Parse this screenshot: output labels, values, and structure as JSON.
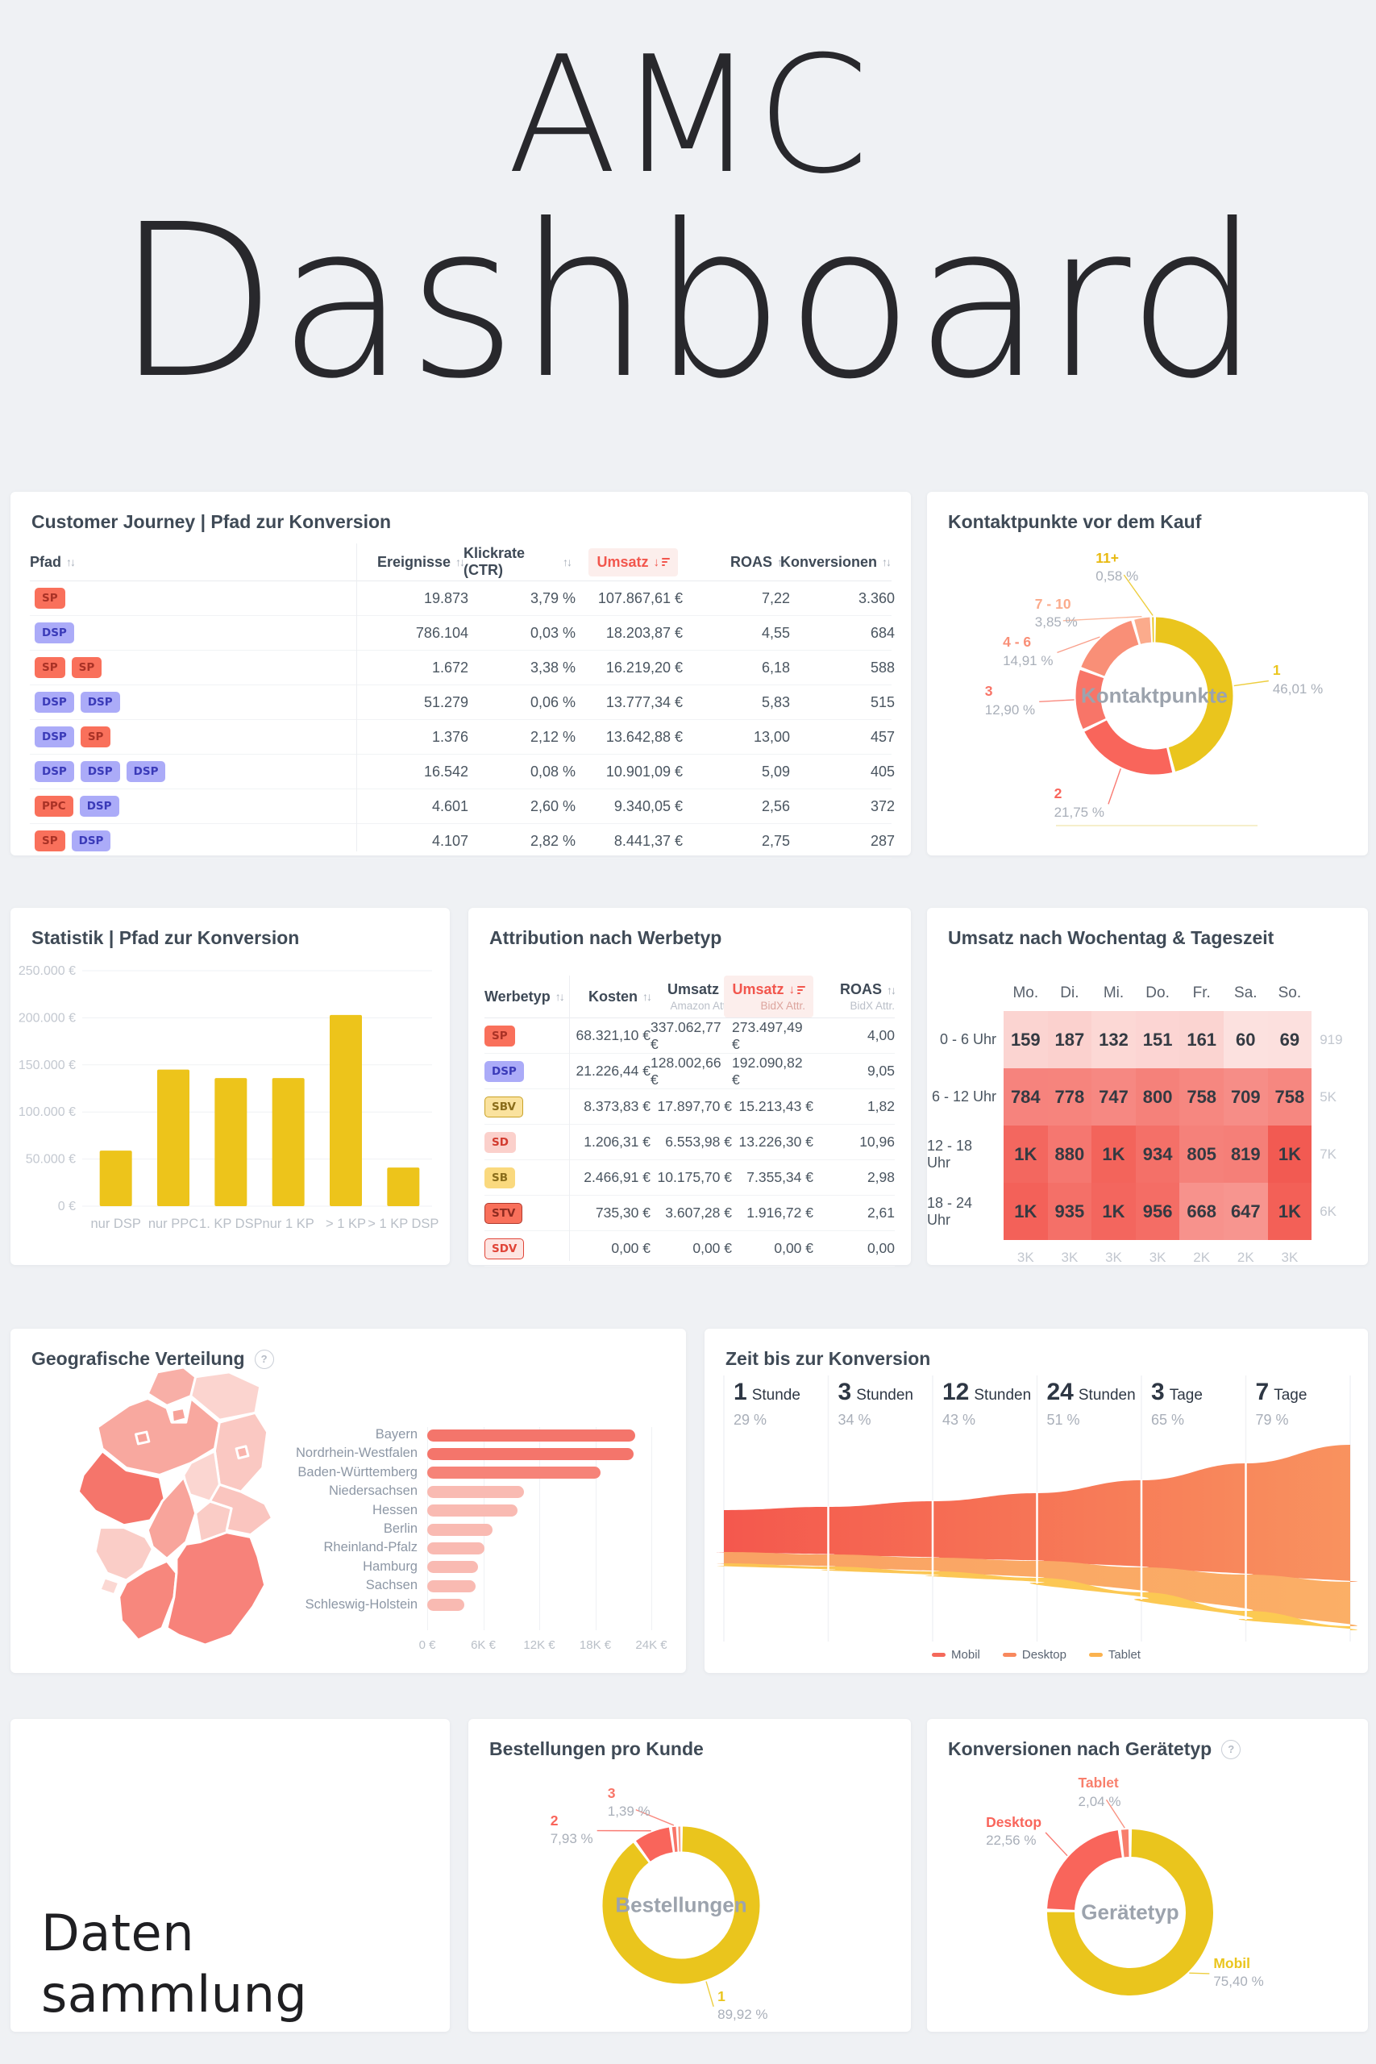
{
  "header": {
    "title_line1": "AMC",
    "title_line2": "Dashboard"
  },
  "icons": {
    "help": "question-mark-circle-icon",
    "sort_inactive": "sort-up-down-arrows-icon",
    "sort_active": "sort-descending-filter-icon"
  },
  "badges": {
    "SP": {
      "bg": "#F9705B",
      "fg": "#A93226"
    },
    "DSP": {
      "bg": "#ABABF8",
      "fg": "#3A3AB8"
    },
    "PPC": {
      "bg": "#F9705B",
      "fg": "#A93226"
    },
    "SBV": {
      "bg": "#FAE29E",
      "fg": "#8A6D1B",
      "border": "#C9A227"
    },
    "SD": {
      "bg": "#FBD0CB",
      "fg": "#D23B2F"
    },
    "SB": {
      "bg": "#FAD97E",
      "fg": "#8A6D1B"
    },
    "STV": {
      "bg": "#F9705B",
      "fg": "#8E2B20",
      "border": "#B03A2E"
    },
    "SDV": {
      "bg": "#FDE5E2",
      "fg": "#E04437",
      "border": "#E04437"
    }
  },
  "cards": {
    "customer_journey": {
      "title": "Customer Journey | Pfad zur Konversion",
      "table": {
        "columns": [
          {
            "label": "Pfad",
            "sortable": true
          },
          {
            "label": "Ereignisse",
            "sortable": true
          },
          {
            "label": "Klickrate (CTR)",
            "sortable": true
          },
          {
            "label": "Umsatz",
            "sortable": true,
            "active": true
          },
          {
            "label": "ROAS",
            "sortable": true
          },
          {
            "label": "Konversionen",
            "sortable": true
          }
        ],
        "rows": [
          {
            "path": [
              "SP"
            ],
            "values": [
              "19.873",
              "3,79 %",
              "107.867,61 €",
              "7,22",
              "3.360"
            ]
          },
          {
            "path": [
              "DSP"
            ],
            "values": [
              "786.104",
              "0,03 %",
              "18.203,87 €",
              "4,55",
              "684"
            ]
          },
          {
            "path": [
              "SP",
              "SP"
            ],
            "values": [
              "1.672",
              "3,38 %",
              "16.219,20 €",
              "6,18",
              "588"
            ]
          },
          {
            "path": [
              "DSP",
              "DSP"
            ],
            "values": [
              "51.279",
              "0,06 %",
              "13.777,34 €",
              "5,83",
              "515"
            ]
          },
          {
            "path": [
              "DSP",
              "SP"
            ],
            "values": [
              "1.376",
              "2,12 %",
              "13.642,88 €",
              "13,00",
              "457"
            ]
          },
          {
            "path": [
              "DSP",
              "DSP",
              "DSP"
            ],
            "values": [
              "16.542",
              "0,08 %",
              "10.901,09 €",
              "5,09",
              "405"
            ]
          },
          {
            "path": [
              "PPC",
              "DSP"
            ],
            "values": [
              "4.601",
              "2,60 %",
              "9.340,05 €",
              "2,56",
              "372"
            ]
          },
          {
            "path": [
              "SP",
              "DSP"
            ],
            "values": [
              "4.107",
              "2,82 %",
              "8.441,37 €",
              "2,75",
              "287"
            ]
          }
        ]
      }
    },
    "kontaktpunkte": {
      "title": "Kontaktpunkte vor dem Kauf"
    },
    "statistik": {
      "title": "Statistik | Pfad zur Konversion"
    },
    "attribution": {
      "title": "Attribution nach Werbetyp",
      "table": {
        "columns": [
          {
            "label": "Werbetyp",
            "sortable": true
          },
          {
            "label": "Kosten",
            "sortable": true
          },
          {
            "label": "Umsatz",
            "sublabel": "Amazon Attr.",
            "sortable": true
          },
          {
            "label": "Umsatz",
            "sublabel": "BidX Attr.",
            "sortable": true,
            "active": true
          },
          {
            "label": "ROAS",
            "sublabel": "BidX Attr.",
            "sortable": true
          }
        ],
        "rows": [
          {
            "badge": "SP",
            "values": [
              "68.321,10 €",
              "337.062,77 €",
              "273.497,49 €",
              "4,00"
            ]
          },
          {
            "badge": "DSP",
            "values": [
              "21.226,44 €",
              "128.002,66 €",
              "192.090,82 €",
              "9,05"
            ]
          },
          {
            "badge": "SBV",
            "values": [
              "8.373,83 €",
              "17.897,70 €",
              "15.213,43 €",
              "1,82"
            ]
          },
          {
            "badge": "SD",
            "values": [
              "1.206,31 €",
              "6.553,98 €",
              "13.226,30 €",
              "10,96"
            ]
          },
          {
            "badge": "SB",
            "values": [
              "2.466,91 €",
              "10.175,70 €",
              "7.355,34 €",
              "2,98"
            ]
          },
          {
            "badge": "STV",
            "values": [
              "735,30 €",
              "3.607,28 €",
              "1.916,72 €",
              "2,61"
            ]
          },
          {
            "badge": "SDV",
            "values": [
              "0,00 €",
              "0,00 €",
              "0,00 €",
              "0,00"
            ]
          }
        ]
      }
    },
    "heatmap": {
      "title": "Umsatz nach Wochentag & Tageszeit"
    },
    "geografie": {
      "title": "Geografische Verteilung",
      "map_regions": [
        {
          "name": "schleswig-holstein",
          "color": "#F8AFA7"
        },
        {
          "name": "mecklenburg-vorpommern",
          "color": "#FBD4CF"
        },
        {
          "name": "hamburg",
          "color": "#F7A299"
        },
        {
          "name": "niedersachsen",
          "color": "#F8A89F"
        },
        {
          "name": "bremen",
          "color": "#F7A299"
        },
        {
          "name": "brandenburg",
          "color": "#FAC8C2"
        },
        {
          "name": "berlin",
          "color": "#F9B3AB"
        },
        {
          "name": "sachsen-anhalt",
          "color": "#FBD6D1"
        },
        {
          "name": "nordrhein-westfalen",
          "color": "#F5756B"
        },
        {
          "name": "hessen",
          "color": "#F8A49B"
        },
        {
          "name": "thueringen",
          "color": "#FACCC6"
        },
        {
          "name": "sachsen",
          "color": "#FAC5BF"
        },
        {
          "name": "rheinland-pfalz",
          "color": "#FACDC7"
        },
        {
          "name": "saarland",
          "color": "#FBD8D3"
        },
        {
          "name": "baden-wuerttemberg",
          "color": "#F7877D"
        },
        {
          "name": "bayern",
          "color": "#F7827A"
        }
      ]
    },
    "zeit": {
      "title": "Zeit bis zur Konversion"
    },
    "daten": {
      "line1": "Daten",
      "line2": "sammlung"
    },
    "bestellungen": {
      "title": "Bestellungen pro Kunde"
    },
    "geraetetyp": {
      "title": "Konversionen nach Gerätetyp"
    }
  },
  "chart_data": [
    {
      "id": "kontaktpunkte_donut",
      "type": "pie",
      "title": "Kontaktpunkte vor dem Kauf",
      "center_label": "Kontaktpunkte",
      "slices": [
        {
          "label": "1",
          "value": 46.01,
          "display": "46,01 %",
          "color": "#EAC51D"
        },
        {
          "label": "2",
          "value": 21.75,
          "display": "21,75 %",
          "color": "#F9655B"
        },
        {
          "label": "3",
          "value": 12.9,
          "display": "12,90 %",
          "color": "#F87568"
        },
        {
          "label": "4 - 6",
          "value": 14.91,
          "display": "14,91 %",
          "color": "#F98F77"
        },
        {
          "label": "7 - 10",
          "value": 3.85,
          "display": "3,85 %",
          "color": "#FBAB8C"
        },
        {
          "label": "11+",
          "value": 0.58,
          "display": "0,58 %",
          "color": "#EAC51D",
          "label_color": "#E8B90F"
        }
      ]
    },
    {
      "id": "statistik_bar",
      "type": "bar",
      "title": "Statistik | Pfad zur Konversion",
      "categories": [
        "nur DSP",
        "nur PPC",
        "1. KP DSP",
        "nur 1 KP",
        "> 1 KP",
        "> 1 KP DSP"
      ],
      "values": [
        59000,
        145000,
        136000,
        136000,
        203000,
        41000
      ],
      "bar_color": "#EDC41B",
      "ylim": [
        0,
        250000
      ],
      "yticks": [
        {
          "value": 0,
          "label": "0 €"
        },
        {
          "value": 50000,
          "label": "50.000 €"
        },
        {
          "value": 100000,
          "label": "100.000 €"
        },
        {
          "value": 150000,
          "label": "150.000 €"
        },
        {
          "value": 200000,
          "label": "200.000 €"
        },
        {
          "value": 250000,
          "label": "250.000 €"
        }
      ]
    },
    {
      "id": "umsatz_heatmap",
      "type": "heatmap",
      "title": "Umsatz nach Wochentag & Tageszeit",
      "columns": [
        "Mo.",
        "Di.",
        "Mi.",
        "Do.",
        "Fr.",
        "Sa.",
        "So."
      ],
      "rows": [
        {
          "label": "0 - 6 Uhr",
          "values": [
            159,
            187,
            132,
            151,
            161,
            60,
            69
          ],
          "display": [
            "159",
            "187",
            "132",
            "151",
            "161",
            "60",
            "69"
          ],
          "total": "919"
        },
        {
          "label": "6 - 12 Uhr",
          "values": [
            784,
            778,
            747,
            800,
            758,
            709,
            758
          ],
          "display": [
            "784",
            "778",
            "747",
            "800",
            "758",
            "709",
            "758"
          ],
          "total": "5K"
        },
        {
          "label": "12 - 18 Uhr",
          "values": [
            1000,
            880,
            1030,
            934,
            805,
            819,
            1100
          ],
          "display": [
            "1K",
            "880",
            "1K",
            "934",
            "805",
            "819",
            "1K"
          ],
          "total": "7K"
        },
        {
          "label": "18 - 24 Uhr",
          "values": [
            1050,
            935,
            1010,
            956,
            668,
            647,
            1060
          ],
          "display": [
            "1K",
            "935",
            "1K",
            "956",
            "668",
            "647",
            "1K"
          ],
          "total": "6K"
        }
      ],
      "col_totals": [
        "3K",
        "3K",
        "3K",
        "3K",
        "2K",
        "2K",
        "3K"
      ],
      "color_scale": {
        "min_color": "#FDE9E7",
        "max_color": "#F2544B",
        "max_value": 1150
      }
    },
    {
      "id": "geo_bars",
      "type": "bar",
      "orientation": "horizontal",
      "categories": [
        "Bayern",
        "Nordrhein-Westfalen",
        "Baden-Württemberg",
        "Niedersachsen",
        "Hessen",
        "Berlin",
        "Rheinland-Pfalz",
        "Hamburg",
        "Sachsen",
        "Schleswig-Holstein"
      ],
      "values": [
        22300,
        22100,
        18600,
        10400,
        9700,
        7000,
        6100,
        5400,
        5200,
        4000
      ],
      "colors": [
        "#F4756B",
        "#F4756B",
        "#F68378",
        "#F9BAB2",
        "#F9BAB2",
        "#F9BAB2",
        "#F9BAB2",
        "#F9BAB2",
        "#F9BAB2",
        "#F9BAB2"
      ],
      "xlim": [
        0,
        24000
      ],
      "xticks": [
        {
          "value": 0,
          "label": "0 €"
        },
        {
          "value": 6000,
          "label": "6K €"
        },
        {
          "value": 12000,
          "label": "12K €"
        },
        {
          "value": 18000,
          "label": "18K €"
        },
        {
          "value": 24000,
          "label": "24K €"
        }
      ]
    },
    {
      "id": "zeit_funnel",
      "type": "area",
      "title": "Zeit bis zur Konversion",
      "stages": [
        {
          "value": "1",
          "unit": "Stunde",
          "pct": "29 %"
        },
        {
          "value": "3",
          "unit": "Stunden",
          "pct": "34 %"
        },
        {
          "value": "12",
          "unit": "Stunden",
          "pct": "43 %"
        },
        {
          "value": "24",
          "unit": "Stunden",
          "pct": "51 %"
        },
        {
          "value": "3",
          "unit": "Tage",
          "pct": "65 %"
        },
        {
          "value": "7",
          "unit": "Tage",
          "pct": "79 %"
        }
      ],
      "series": [
        {
          "name": "Mobil",
          "color_start": "#F4574D",
          "color_end": "#F9935F",
          "legend_color": "#F4695B"
        },
        {
          "name": "Desktop",
          "color_start": "#F9A164",
          "color_end": "#FBAF66",
          "legend_color": "#F8885D"
        },
        {
          "name": "Tablet",
          "color_start": "#FBC355",
          "color_end": "#FCCB52",
          "legend_color": "#FBB24E"
        }
      ],
      "geometry": {
        "x": [
          24,
          153.5,
          283,
          412.5,
          542,
          671.5,
          801
        ],
        "top": [
          225,
          221,
          214,
          204,
          188,
          167,
          144
        ],
        "mobil_bottom": [
          277,
          280,
          284,
          288,
          296,
          305,
          314
        ],
        "desktop_bottom": [
          291,
          295,
          301,
          309,
          327,
          350,
          369
        ],
        "tablet_bottom": [
          294,
          299,
          306,
          315,
          335,
          360,
          374
        ]
      }
    },
    {
      "id": "bestellungen_donut",
      "type": "pie",
      "title": "Bestellungen pro Kunde",
      "center_label": "Bestellungen",
      "slices": [
        {
          "label": "1",
          "value": 89.92,
          "display": "89,92 %",
          "color": "#EAC51D"
        },
        {
          "label": "2",
          "value": 7.93,
          "display": "7,93 %",
          "color": "#F9655B"
        },
        {
          "label": "3",
          "value": 1.39,
          "display": "1,39 %",
          "color": "#F87568"
        },
        {
          "label": "",
          "value": 0.76,
          "display": "",
          "color": "#F9A181"
        }
      ]
    },
    {
      "id": "geraetetyp_donut",
      "type": "pie",
      "title": "Konversionen nach Gerätetyp",
      "center_label": "Gerätetyp",
      "slices": [
        {
          "label": "Mobil",
          "value": 75.4,
          "display": "75,40 %",
          "color": "#EAC51D"
        },
        {
          "label": "Desktop",
          "value": 22.56,
          "display": "22,56 %",
          "color": "#F9655B"
        },
        {
          "label": "Tablet",
          "value": 2.04,
          "display": "2,04 %",
          "color": "#F87F6C"
        }
      ]
    }
  ]
}
